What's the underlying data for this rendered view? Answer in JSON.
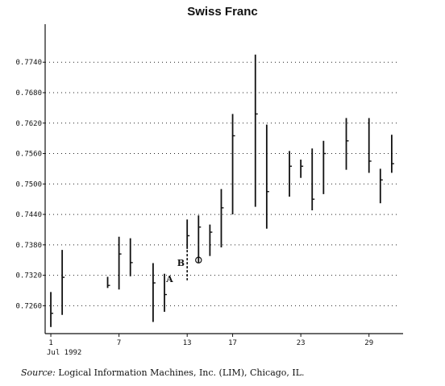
{
  "chart_data": {
    "type": "bar",
    "subtype": "high-low-close",
    "title": "Swiss Franc",
    "xlabel": "",
    "ylabel": "",
    "x_start_label": "Jul 1992",
    "ylim": [
      0.7205,
      0.7815
    ],
    "xlim": [
      0.5,
      32
    ],
    "y_ticks": [
      "0.7740",
      "0.7680",
      "0.7620",
      "0.7560",
      "0.7500",
      "0.7440",
      "0.7380",
      "0.7320",
      "0.7260"
    ],
    "x_ticks": [
      1,
      7,
      13,
      17,
      23,
      29
    ],
    "grid": "horizontal dotted",
    "bars": [
      {
        "day": 1,
        "high": 0.7287,
        "low": 0.7218,
        "close": 0.7245
      },
      {
        "day": 2,
        "high": 0.737,
        "low": 0.7242,
        "close": 0.7316
      },
      {
        "day": 6,
        "high": 0.7317,
        "low": 0.7295,
        "close": 0.73
      },
      {
        "day": 7,
        "high": 0.7396,
        "low": 0.7292,
        "close": 0.7362
      },
      {
        "day": 8,
        "high": 0.7393,
        "low": 0.7318,
        "close": 0.7345
      },
      {
        "day": 10,
        "high": 0.7344,
        "low": 0.7228,
        "close": 0.7305
      },
      {
        "day": 11,
        "high": 0.7323,
        "low": 0.7248,
        "close": 0.7282
      },
      {
        "day": 13,
        "high": 0.743,
        "low": 0.7372,
        "close": 0.7398
      },
      {
        "day": 14,
        "high": 0.7438,
        "low": 0.7345,
        "close": 0.7415
      },
      {
        "day": 15,
        "high": 0.742,
        "low": 0.7358,
        "close": 0.7405
      },
      {
        "day": 16,
        "high": 0.749,
        "low": 0.7375,
        "close": 0.7453
      },
      {
        "day": 17,
        "high": 0.7638,
        "low": 0.744,
        "close": 0.7595
      },
      {
        "day": 19,
        "high": 0.7755,
        "low": 0.7455,
        "close": 0.7638
      },
      {
        "day": 20,
        "high": 0.7617,
        "low": 0.7412,
        "close": 0.7485
      },
      {
        "day": 22,
        "high": 0.7565,
        "low": 0.7475,
        "close": 0.7535
      },
      {
        "day": 23,
        "high": 0.7548,
        "low": 0.7512,
        "close": 0.7535
      },
      {
        "day": 24,
        "high": 0.757,
        "low": 0.7448,
        "close": 0.747
      },
      {
        "day": 25,
        "high": 0.7585,
        "low": 0.748,
        "close": 0.756
      },
      {
        "day": 27,
        "high": 0.763,
        "low": 0.7528,
        "close": 0.7585
      },
      {
        "day": 29,
        "high": 0.763,
        "low": 0.7522,
        "close": 0.7545
      },
      {
        "day": 30,
        "high": 0.753,
        "low": 0.7462,
        "close": 0.7508
      },
      {
        "day": 31,
        "high": 0.7597,
        "low": 0.7522,
        "close": 0.754
      }
    ],
    "annotations": [
      {
        "label": "A",
        "day": 11.45,
        "y": 0.7313
      },
      {
        "label": "B",
        "day": 12.45,
        "y": 0.7345
      },
      {
        "label": "O",
        "day": 14,
        "y": 0.735
      }
    ],
    "dashed_segment": {
      "day": 13,
      "high": 0.737,
      "low": 0.731
    }
  },
  "source": {
    "label": "Source:",
    "text": "Logical Information Machines, Inc. (LIM), Chicago, IL."
  }
}
